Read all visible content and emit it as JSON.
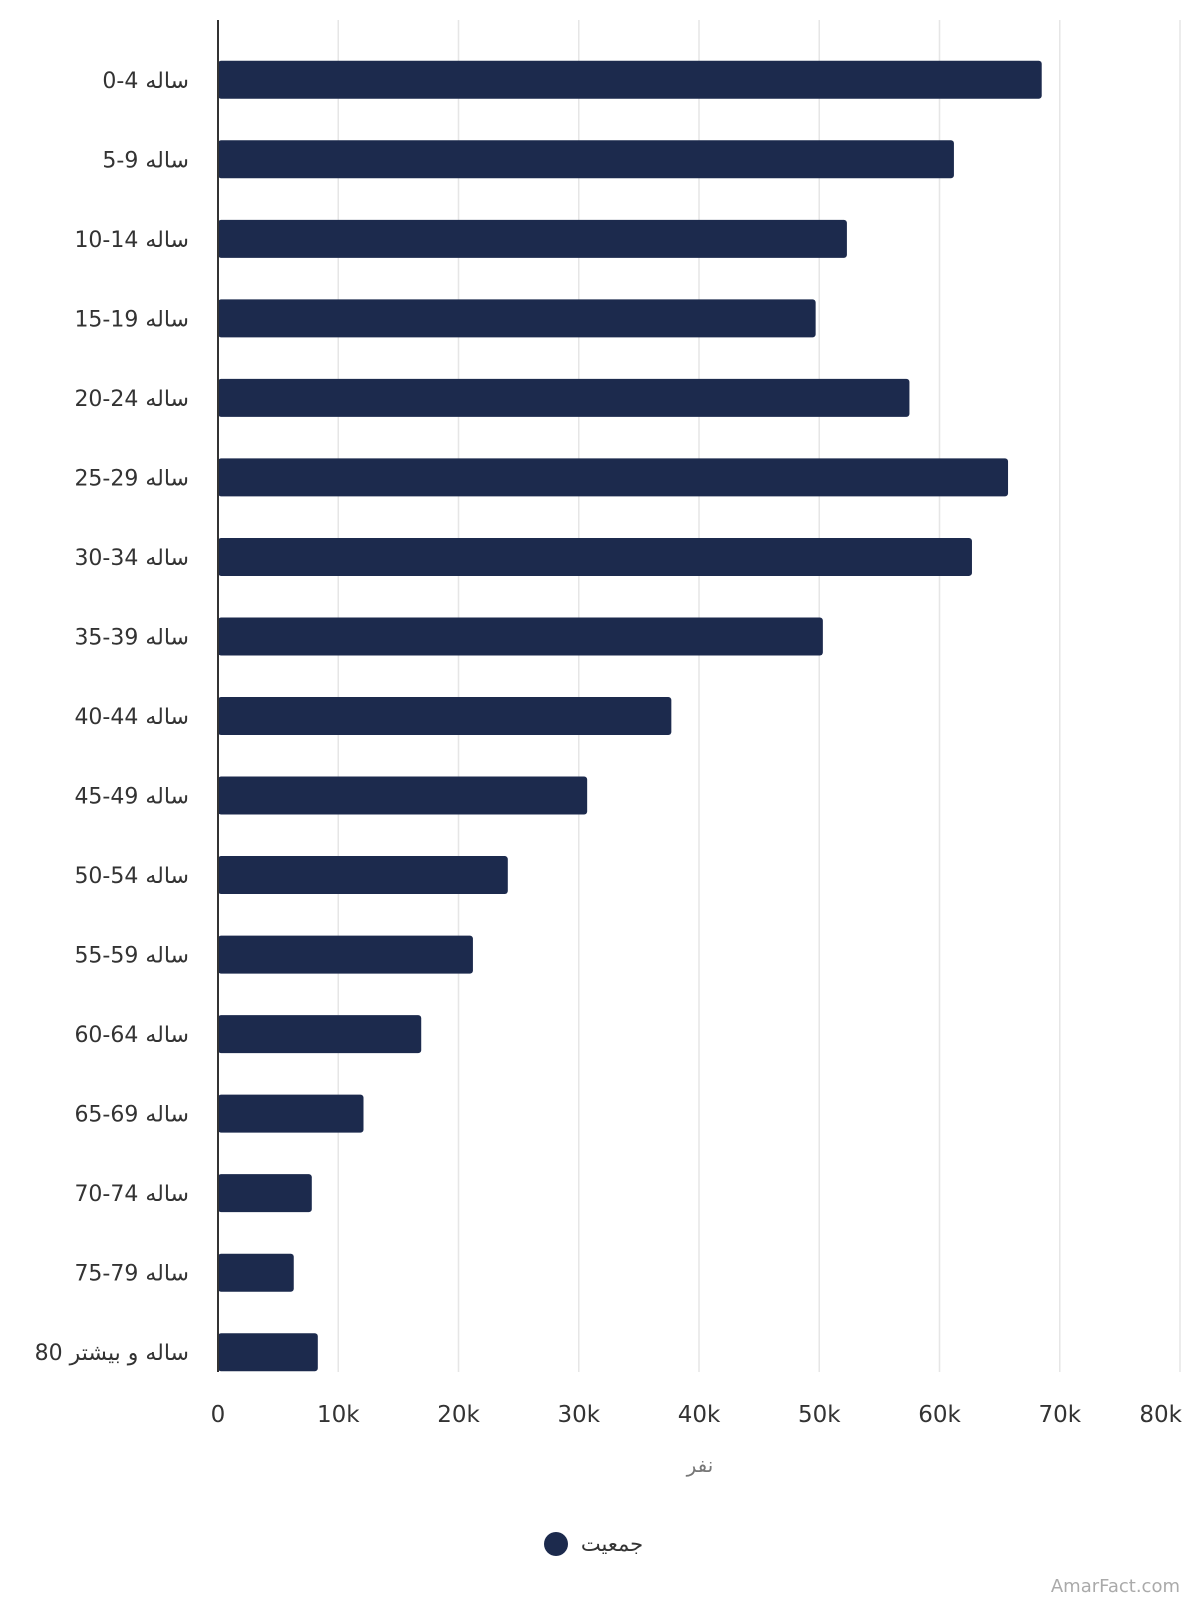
{
  "chart_data": {
    "type": "bar",
    "orientation": "horizontal",
    "categories": [
      "0-4 ساله",
      "5-9 ساله",
      "10-14 ساله",
      "15-19 ساله",
      "20-24 ساله",
      "25-29 ساله",
      "30-34 ساله",
      "35-39 ساله",
      "40-44 ساله",
      "45-49 ساله",
      "50-54 ساله",
      "55-59 ساله",
      "60-64 ساله",
      "65-69 ساله",
      "70-74 ساله",
      "75-79 ساله",
      "80 ساله و بیشتر"
    ],
    "series": [
      {
        "name": "جمعیت",
        "values": [
          68500,
          61200,
          52300,
          49700,
          57500,
          65700,
          62700,
          50300,
          37700,
          30700,
          24100,
          21200,
          16900,
          12100,
          7800,
          6300,
          8300
        ]
      }
    ],
    "xlabel": "نفر",
    "xlim": [
      0,
      80000
    ],
    "xticks": [
      "0",
      "10k",
      "20k",
      "30k",
      "40k",
      "50k",
      "60k",
      "70k",
      "80k"
    ],
    "grid": "vertical",
    "legend_position": "bottom"
  },
  "colors": {
    "bar": "#1c2a4d",
    "grid": "#e6e6e6",
    "axis": "#333333"
  },
  "watermark": "AmarFact.com"
}
